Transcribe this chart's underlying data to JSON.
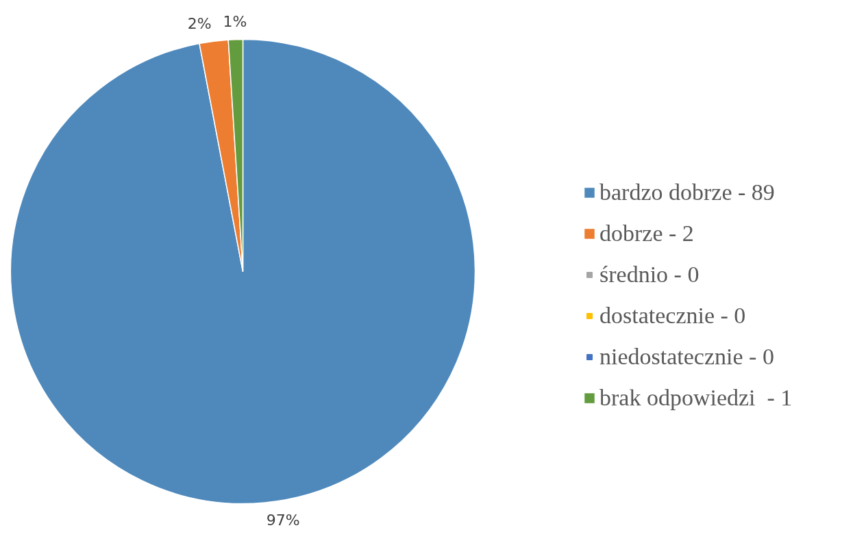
{
  "chart_data": {
    "type": "pie",
    "categories": [
      "bardzo dobrze - 89",
      "dobrze - 2",
      "średnio - 0",
      "dostatecznie - 0",
      "niedostatecznie - 0",
      "brak odpowiedzi  - 1"
    ],
    "values": [
      97,
      2,
      0,
      0,
      0,
      1
    ],
    "colors": [
      "#4f89bc",
      "#ed7d31",
      "#a5a5a5",
      "#ffc000",
      "#4472c4",
      "#639c3e"
    ],
    "value_labels": [
      "97%",
      "2%",
      null,
      null,
      null,
      "1%"
    ],
    "legend": "right"
  }
}
